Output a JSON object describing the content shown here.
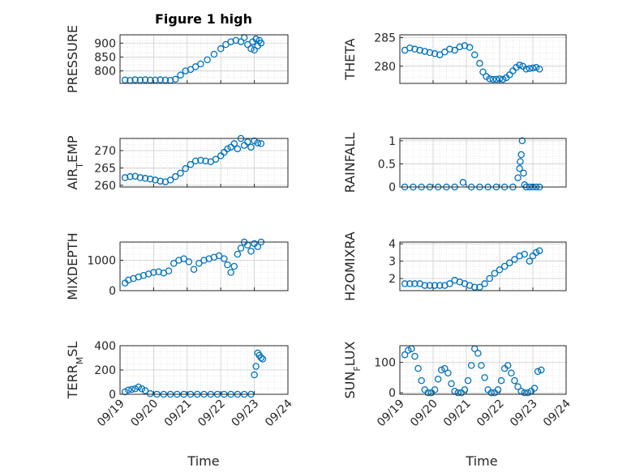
{
  "figure": {
    "title": "Figure 1 high",
    "xlabel": "Time",
    "date_ticks": [
      "09/19",
      "09/20",
      "09/21",
      "09/22",
      "09/23",
      "09/24"
    ],
    "marker_color": "#0072BD",
    "grid_color": "#d6d6d6"
  },
  "chart_data": [
    {
      "type": "scatter",
      "name": "pressure-panel",
      "ylabel": "PRESSURE",
      "ylim": [
        755,
        930
      ],
      "yticks": [
        800,
        850,
        900
      ],
      "xlim": [
        0,
        5
      ],
      "x": [
        0.15,
        0.3,
        0.45,
        0.6,
        0.75,
        0.9,
        1.05,
        1.2,
        1.35,
        1.5,
        1.65,
        1.8,
        1.95,
        2.1,
        2.25,
        2.4,
        2.6,
        2.8,
        3.0,
        3.15,
        3.3,
        3.45,
        3.6,
        3.7,
        3.8,
        3.9,
        3.95,
        4.0,
        4.05,
        4.1,
        4.15,
        4.2
      ],
      "y": [
        767,
        766,
        768,
        767,
        768,
        767,
        767,
        768,
        767,
        766,
        770,
        785,
        800,
        805,
        815,
        825,
        840,
        860,
        880,
        895,
        905,
        910,
        905,
        920,
        895,
        880,
        905,
        875,
        915,
        890,
        910,
        900
      ]
    },
    {
      "type": "scatter",
      "name": "theta-panel",
      "ylabel": "THETA",
      "ylim": [
        277,
        285.5
      ],
      "yticks": [
        280,
        285
      ],
      "xlim": [
        0,
        5
      ],
      "x": [
        0.15,
        0.3,
        0.45,
        0.6,
        0.75,
        0.9,
        1.05,
        1.2,
        1.35,
        1.5,
        1.65,
        1.8,
        1.95,
        2.1,
        2.25,
        2.4,
        2.5,
        2.6,
        2.7,
        2.8,
        2.9,
        3.0,
        3.1,
        3.2,
        3.3,
        3.4,
        3.5,
        3.6,
        3.7,
        3.8,
        3.9,
        4.0,
        4.1,
        4.2
      ],
      "y": [
        282.8,
        283.2,
        283.0,
        282.8,
        282.6,
        282.4,
        282.2,
        282.0,
        282.5,
        283.0,
        282.8,
        283.4,
        283.6,
        283.3,
        282.0,
        280.5,
        279.0,
        278.2,
        277.8,
        277.7,
        277.7,
        277.8,
        277.7,
        278.0,
        278.5,
        279.2,
        279.8,
        280.2,
        280.0,
        279.5,
        279.6,
        279.7,
        279.8,
        279.5
      ]
    },
    {
      "type": "scatter",
      "name": "air-temp-panel",
      "ylabel": "AIR_TEMP",
      "ylim": [
        259.5,
        273.5
      ],
      "yticks": [
        260,
        265,
        270
      ],
      "xlim": [
        0,
        5
      ],
      "x": [
        0.15,
        0.3,
        0.45,
        0.6,
        0.75,
        0.9,
        1.05,
        1.2,
        1.35,
        1.5,
        1.65,
        1.8,
        1.95,
        2.1,
        2.25,
        2.4,
        2.55,
        2.7,
        2.85,
        3.0,
        3.1,
        3.2,
        3.3,
        3.4,
        3.5,
        3.6,
        3.7,
        3.8,
        3.9,
        4.0,
        4.1,
        4.2
      ],
      "y": [
        262.2,
        262.5,
        262.6,
        262.2,
        262.0,
        261.8,
        261.5,
        261.2,
        261.0,
        261.5,
        262.5,
        263.5,
        264.8,
        266.0,
        267.0,
        267.2,
        267.0,
        266.8,
        267.5,
        268.5,
        269.5,
        270.5,
        271.0,
        272.0,
        270.5,
        273.5,
        271.5,
        272.5,
        271.0,
        272.8,
        272.2,
        272.0
      ]
    },
    {
      "type": "scatter",
      "name": "rainfall-panel",
      "ylabel": "RAINFALL",
      "ylim": [
        0,
        1.05
      ],
      "yticks": [
        0,
        0.5,
        1
      ],
      "xlim": [
        0,
        5
      ],
      "x": [
        0.15,
        0.4,
        0.65,
        0.9,
        1.15,
        1.4,
        1.65,
        1.9,
        2.15,
        2.4,
        2.65,
        2.9,
        3.15,
        3.4,
        3.55,
        3.6,
        3.62,
        3.65,
        3.68,
        3.72,
        3.75,
        3.8,
        3.9,
        4.0,
        4.1,
        4.2
      ],
      "y": [
        0,
        0,
        0,
        0,
        0,
        0,
        0,
        0.1,
        0,
        0,
        0,
        0,
        0,
        0,
        0.2,
        0.4,
        0.55,
        0.7,
        1.0,
        0.3,
        0.05,
        0,
        0,
        0,
        0,
        0
      ]
    },
    {
      "type": "scatter",
      "name": "mixdepth-panel",
      "ylabel": "MIXDEPTH",
      "ylim": [
        0,
        1600
      ],
      "yticks": [
        0,
        1000
      ],
      "xlim": [
        0,
        5
      ],
      "x": [
        0.15,
        0.25,
        0.4,
        0.55,
        0.7,
        0.85,
        1.0,
        1.15,
        1.3,
        1.45,
        1.6,
        1.75,
        1.9,
        2.05,
        2.2,
        2.35,
        2.5,
        2.65,
        2.8,
        2.95,
        3.1,
        3.2,
        3.3,
        3.4,
        3.5,
        3.6,
        3.7,
        3.8,
        3.9,
        4.0,
        4.1,
        4.2
      ],
      "y": [
        250,
        350,
        400,
        450,
        500,
        550,
        600,
        620,
        580,
        650,
        900,
        1000,
        1050,
        950,
        700,
        900,
        1000,
        1050,
        1100,
        1150,
        1050,
        850,
        600,
        800,
        1200,
        1400,
        1600,
        1500,
        1300,
        1550,
        1450,
        1600
      ]
    },
    {
      "type": "scatter",
      "name": "h2omixra-panel",
      "ylabel": "H2OMIXRA",
      "ylim": [
        1.3,
        4.1
      ],
      "yticks": [
        2,
        3,
        4
      ],
      "xlim": [
        0,
        5
      ],
      "x": [
        0.15,
        0.3,
        0.45,
        0.6,
        0.75,
        0.9,
        1.05,
        1.2,
        1.35,
        1.5,
        1.65,
        1.8,
        1.95,
        2.1,
        2.25,
        2.4,
        2.55,
        2.7,
        2.85,
        3.0,
        3.15,
        3.3,
        3.45,
        3.6,
        3.75,
        3.9,
        4.0,
        4.1,
        4.2
      ],
      "y": [
        1.7,
        1.7,
        1.7,
        1.7,
        1.6,
        1.6,
        1.6,
        1.6,
        1.6,
        1.7,
        1.9,
        1.8,
        1.7,
        1.6,
        1.5,
        1.5,
        1.7,
        2.0,
        2.3,
        2.5,
        2.7,
        2.9,
        3.1,
        3.3,
        3.4,
        3.0,
        3.3,
        3.5,
        3.6
      ]
    },
    {
      "type": "scatter",
      "name": "terr-msl-panel",
      "ylabel": "TERR_MSL",
      "ylim": [
        0,
        400
      ],
      "yticks": [
        0,
        200,
        400
      ],
      "xlim": [
        0,
        5
      ],
      "x": [
        0.15,
        0.25,
        0.35,
        0.45,
        0.55,
        0.65,
        0.75,
        0.9,
        1.1,
        1.3,
        1.5,
        1.7,
        1.9,
        2.1,
        2.3,
        2.5,
        2.7,
        2.9,
        3.1,
        3.3,
        3.5,
        3.7,
        3.9,
        4.0,
        4.05,
        4.1,
        4.15,
        4.2,
        4.25
      ],
      "y": [
        20,
        35,
        40,
        45,
        60,
        45,
        30,
        5,
        0,
        0,
        0,
        0,
        0,
        0,
        0,
        0,
        0,
        0,
        0,
        0,
        0,
        0,
        0,
        160,
        230,
        340,
        320,
        300,
        290
      ]
    },
    {
      "type": "scatter",
      "name": "sun-flux-panel",
      "ylabel": "SUN_FLUX",
      "ylim": [
        -5,
        155
      ],
      "yticks": [
        0,
        100
      ],
      "xlim": [
        0,
        5
      ],
      "x": [
        0.15,
        0.25,
        0.35,
        0.45,
        0.55,
        0.65,
        0.75,
        0.85,
        0.95,
        1.05,
        1.15,
        1.25,
        1.35,
        1.45,
        1.55,
        1.65,
        1.75,
        1.85,
        1.95,
        2.05,
        2.15,
        2.25,
        2.35,
        2.45,
        2.55,
        2.65,
        2.75,
        2.85,
        2.95,
        3.05,
        3.15,
        3.25,
        3.35,
        3.45,
        3.55,
        3.65,
        3.75,
        3.85,
        3.95,
        4.05,
        4.15,
        4.25
      ],
      "y": [
        125,
        140,
        145,
        120,
        80,
        40,
        10,
        0,
        0,
        10,
        45,
        75,
        80,
        65,
        30,
        5,
        0,
        0,
        10,
        40,
        90,
        145,
        130,
        90,
        50,
        10,
        0,
        0,
        10,
        40,
        80,
        90,
        65,
        40,
        20,
        5,
        0,
        0,
        5,
        15,
        70,
        75
      ]
    }
  ]
}
